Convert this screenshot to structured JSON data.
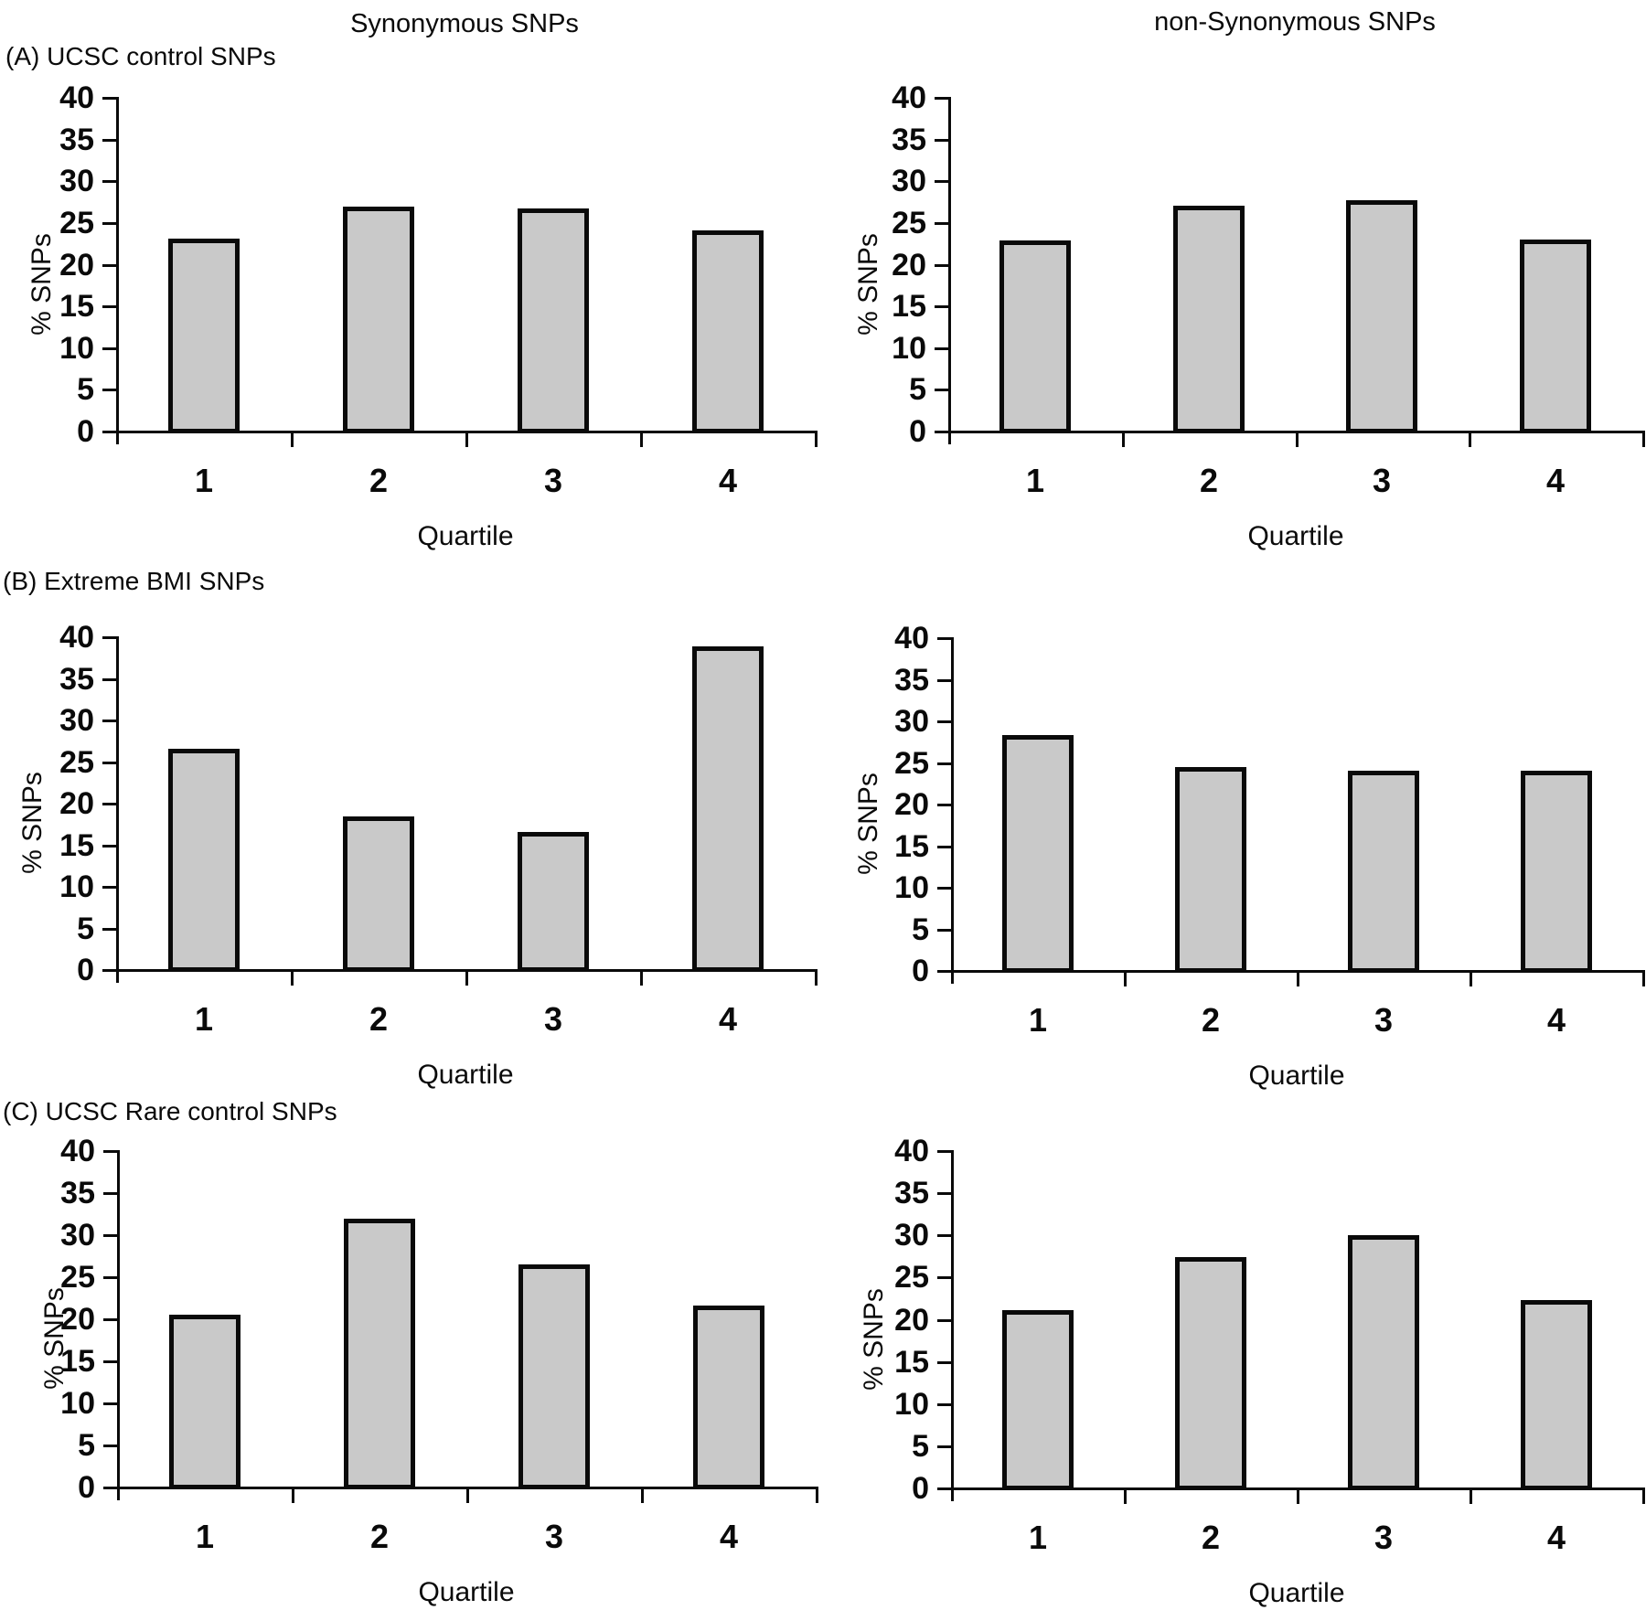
{
  "figure": {
    "column_headers": [
      {
        "label": "Synonymous SNPs"
      },
      {
        "label": "non-Synonymous SNPs"
      }
    ],
    "panel_labels": [
      {
        "label": "(A) UCSC control SNPs"
      },
      {
        "label": "(B) Extreme BMI SNPs"
      },
      {
        "label": "(C) UCSC Rare control SNPs"
      }
    ]
  },
  "chart_data": [
    {
      "type": "bar",
      "panel": "A",
      "snp_group": "UCSC control SNPs",
      "snp_type": "Synonymous SNPs",
      "categories": [
        "1",
        "2",
        "3",
        "4"
      ],
      "values": [
        23.0,
        26.8,
        26.6,
        24.0
      ],
      "title": "",
      "xlabel": "Quartile",
      "ylabel": "% SNPs",
      "ylim": [
        0,
        40
      ],
      "ytick_step": 5,
      "grid": false,
      "legend": "none",
      "bar_fill": "#c9c9c9",
      "bar_border": "#0a0a0a"
    },
    {
      "type": "bar",
      "panel": "A",
      "snp_group": "UCSC control SNPs",
      "snp_type": "non-Synonymous SNPs",
      "categories": [
        "1",
        "2",
        "3",
        "4"
      ],
      "values": [
        22.8,
        27.0,
        27.6,
        22.9
      ],
      "title": "",
      "xlabel": "Quartile",
      "ylabel": "% SNPs",
      "ylim": [
        0,
        40
      ],
      "ytick_step": 5,
      "grid": false,
      "legend": "none",
      "bar_fill": "#c9c9c9",
      "bar_border": "#0a0a0a"
    },
    {
      "type": "bar",
      "panel": "B",
      "snp_group": "Extreme BMI SNPs",
      "snp_type": "Synonymous SNPs",
      "categories": [
        "1",
        "2",
        "3",
        "4"
      ],
      "values": [
        26.5,
        18.4,
        16.5,
        38.8
      ],
      "title": "",
      "xlabel": "Quartile",
      "ylabel": "% SNPs",
      "ylim": [
        0,
        40
      ],
      "ytick_step": 5,
      "grid": false,
      "legend": "none",
      "bar_fill": "#c9c9c9",
      "bar_border": "#0a0a0a"
    },
    {
      "type": "bar",
      "panel": "B",
      "snp_group": "Extreme BMI SNPs",
      "snp_type": "non-Synonymous SNPs",
      "categories": [
        "1",
        "2",
        "3",
        "4"
      ],
      "values": [
        28.2,
        24.4,
        24.0,
        24.0
      ],
      "title": "",
      "xlabel": "Quartile",
      "ylabel": "% SNPs",
      "ylim": [
        0,
        40
      ],
      "ytick_step": 5,
      "grid": false,
      "legend": "none",
      "bar_fill": "#c9c9c9",
      "bar_border": "#0a0a0a"
    },
    {
      "type": "bar",
      "panel": "C",
      "snp_group": "UCSC Rare control SNPs",
      "snp_type": "Synonymous SNPs",
      "categories": [
        "1",
        "2",
        "3",
        "4"
      ],
      "values": [
        20.4,
        31.8,
        26.4,
        21.5
      ],
      "title": "",
      "xlabel": "Quartile",
      "ylabel": "% SNPs",
      "ylim": [
        0,
        40
      ],
      "ytick_step": 5,
      "grid": false,
      "legend": "none",
      "bar_fill": "#c9c9c9",
      "bar_border": "#0a0a0a"
    },
    {
      "type": "bar",
      "panel": "C",
      "snp_group": "UCSC Rare control SNPs",
      "snp_type": "non-Synonymous SNPs",
      "categories": [
        "1",
        "2",
        "3",
        "4"
      ],
      "values": [
        21.0,
        27.3,
        29.9,
        22.2
      ],
      "title": "",
      "xlabel": "Quartile",
      "ylabel": "% SNPs",
      "ylim": [
        0,
        40
      ],
      "ytick_step": 5,
      "grid": false,
      "legend": "none",
      "bar_fill": "#c9c9c9",
      "bar_border": "#0a0a0a"
    }
  ]
}
